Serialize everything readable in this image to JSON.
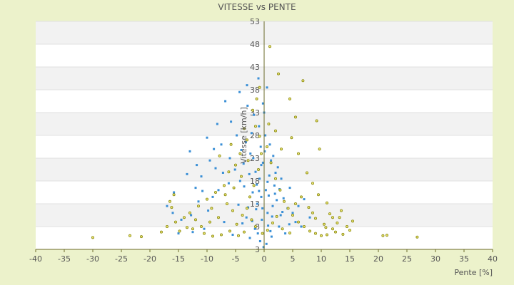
{
  "chart_data": {
    "type": "scatter",
    "title": "VITESSE vs PENTE",
    "xlabel": "Pente [%]",
    "ylabel": "Vitesse [km/h]",
    "xlim": [
      -40,
      40
    ],
    "ylim": [
      3,
      53
    ],
    "x_ticks": [
      -40,
      -35,
      -30,
      -25,
      -20,
      -15,
      -10,
      -5,
      0,
      5,
      10,
      15,
      20,
      25,
      30,
      35,
      40
    ],
    "y_ticks": [
      3,
      8,
      13,
      18,
      23,
      28,
      33,
      38,
      43,
      48,
      53
    ],
    "grid": "horizontal bands",
    "legend": "none",
    "series": [
      {
        "color": "#3a8fd6",
        "values": [
          [
            -0.5,
            14.5
          ],
          [
            0.3,
            16.0
          ],
          [
            -1.2,
            13.0
          ],
          [
            1.5,
            12.5
          ],
          [
            -0.8,
            18.5
          ],
          [
            0.6,
            11.0
          ],
          [
            -2.0,
            15.5
          ],
          [
            2.2,
            13.8
          ],
          [
            -1.5,
            20.0
          ],
          [
            0.9,
            19.2
          ],
          [
            -0.2,
            22.0
          ],
          [
            1.8,
            17.0
          ],
          [
            -2.8,
            12.2
          ],
          [
            2.9,
            10.5
          ],
          [
            -3.5,
            16.8
          ],
          [
            3.4,
            14.2
          ],
          [
            -4.2,
            18.0
          ],
          [
            4.1,
            12.0
          ],
          [
            -0.4,
            9.5
          ],
          [
            0.7,
            8.2
          ],
          [
            -1.1,
            6.5
          ],
          [
            1.3,
            5.8
          ],
          [
            -0.6,
            25.5
          ],
          [
            0.2,
            28.0
          ],
          [
            -2.4,
            24.0
          ],
          [
            1.6,
            23.5
          ],
          [
            -5.1,
            20.5
          ],
          [
            -6.0,
            23.0
          ],
          [
            -7.5,
            26.0
          ],
          [
            -8.2,
            30.5
          ],
          [
            -6.8,
            35.5
          ],
          [
            -4.3,
            37.5
          ],
          [
            -3.0,
            39.0
          ],
          [
            -1.0,
            40.5
          ],
          [
            0.5,
            38.5
          ],
          [
            -9.5,
            22.5
          ],
          [
            -13.0,
            24.5
          ],
          [
            -11.0,
            19.0
          ],
          [
            -15.8,
            15.5
          ],
          [
            -14.5,
            9.5
          ],
          [
            -10.5,
            7.5
          ],
          [
            -12.5,
            6.8
          ],
          [
            -9.0,
            14.5
          ],
          [
            -7.0,
            9.0
          ],
          [
            -5.5,
            6.2
          ],
          [
            -3.8,
            8.7
          ],
          [
            -2.5,
            5.5
          ],
          [
            5.5,
            9.0
          ],
          [
            6.0,
            12.5
          ],
          [
            7.0,
            14.0
          ],
          [
            4.5,
            16.5
          ],
          [
            3.0,
            18.5
          ],
          [
            2.4,
            21.0
          ],
          [
            1.0,
            26.0
          ],
          [
            -0.9,
            30.0
          ],
          [
            -1.8,
            32.5
          ],
          [
            -2.2,
            28.5
          ],
          [
            -3.2,
            26.5
          ],
          [
            -4.8,
            28.0
          ],
          [
            -5.8,
            31.0
          ],
          [
            -8.0,
            16.0
          ],
          [
            -6.5,
            13.0
          ],
          [
            -9.8,
            11.5
          ],
          [
            -11.5,
            13.5
          ],
          [
            -12.0,
            16.5
          ],
          [
            -13.5,
            19.5
          ],
          [
            -0.1,
            3.5
          ],
          [
            0.4,
            4.2
          ],
          [
            -0.7,
            4.8
          ],
          [
            1.1,
            7.0
          ],
          [
            -1.6,
            7.5
          ],
          [
            2.6,
            8.0
          ],
          [
            -3.1,
            10.0
          ],
          [
            3.7,
            6.5
          ],
          [
            -0.3,
            12.0
          ],
          [
            0.8,
            14.8
          ],
          [
            -1.3,
            17.2
          ],
          [
            1.9,
            15.2
          ],
          [
            -2.6,
            19.5
          ],
          [
            2.0,
            19.8
          ],
          [
            -0.5,
            21.5
          ],
          [
            0.1,
            24.5
          ],
          [
            -1.9,
            23.0
          ],
          [
            1.2,
            22.5
          ],
          [
            -4.5,
            12.8
          ],
          [
            4.4,
            8.5
          ],
          [
            -3.6,
            21.8
          ],
          [
            3.2,
            11.2
          ],
          [
            -0.9,
            15.8
          ],
          [
            0.6,
            17.8
          ],
          [
            -1.4,
            11.8
          ],
          [
            1.4,
            10.2
          ],
          [
            -2.1,
            9.2
          ],
          [
            2.7,
            16.2
          ],
          [
            -6.2,
            17.5
          ],
          [
            -7.2,
            19.8
          ],
          [
            -8.8,
            25.0
          ],
          [
            -4.0,
            24.8
          ],
          [
            5.0,
            11.0
          ],
          [
            6.5,
            8.0
          ],
          [
            8.0,
            10.0
          ],
          [
            -0.2,
            35.0
          ],
          [
            0.0,
            33.0
          ],
          [
            -2.9,
            34.5
          ],
          [
            -10.0,
            27.5
          ],
          [
            -11.8,
            21.5
          ],
          [
            -16.0,
            11.0
          ],
          [
            -17.0,
            12.5
          ],
          [
            -15.0,
            6.5
          ],
          [
            -12.8,
            10.5
          ],
          [
            -10.8,
            15.8
          ],
          [
            -8.5,
            20.8
          ]
        ]
      },
      {
        "color": "#8c8c12",
        "values": [
          [
            -30.0,
            5.6
          ],
          [
            -23.5,
            6.0
          ],
          [
            -21.5,
            5.8
          ],
          [
            20.8,
            6.0
          ],
          [
            21.5,
            6.1
          ],
          [
            26.8,
            5.7
          ],
          [
            14.5,
            8.0
          ],
          [
            15.5,
            9.2
          ],
          [
            13.5,
            11.5
          ],
          [
            12.0,
            10.0
          ],
          [
            11.0,
            13.2
          ],
          [
            9.5,
            15.0
          ],
          [
            8.5,
            17.5
          ],
          [
            7.5,
            19.8
          ],
          [
            6.0,
            24.0
          ],
          [
            4.8,
            27.5
          ],
          [
            4.5,
            36.0
          ],
          [
            5.5,
            32.0
          ],
          [
            6.8,
            40.0
          ],
          [
            9.2,
            31.2
          ],
          [
            9.7,
            25.0
          ],
          [
            1.0,
            47.5
          ],
          [
            2.5,
            41.5
          ],
          [
            -0.8,
            38.5
          ],
          [
            -1.3,
            36.0
          ],
          [
            -1.5,
            30.0
          ],
          [
            -2.0,
            33.5
          ],
          [
            -3.0,
            27.0
          ],
          [
            -4.2,
            24.0
          ],
          [
            -5.0,
            21.5
          ],
          [
            -6.2,
            20.0
          ],
          [
            -7.0,
            17.0
          ],
          [
            -8.5,
            15.5
          ],
          [
            -10.0,
            14.0
          ],
          [
            -11.5,
            12.5
          ],
          [
            -13.0,
            11.0
          ],
          [
            -14.0,
            10.0
          ],
          [
            -15.5,
            9.0
          ],
          [
            -17.0,
            8.0
          ],
          [
            -18.0,
            6.8
          ],
          [
            -16.5,
            13.5
          ],
          [
            -15.8,
            15.0
          ],
          [
            -16.2,
            12.2
          ],
          [
            -12.5,
            7.5
          ],
          [
            -10.5,
            6.5
          ],
          [
            -9.0,
            5.9
          ],
          [
            -7.5,
            6.2
          ],
          [
            -6.0,
            7.0
          ],
          [
            -4.8,
            8.5
          ],
          [
            -3.8,
            10.5
          ],
          [
            -3.0,
            12.0
          ],
          [
            -2.5,
            14.5
          ],
          [
            -1.8,
            17.0
          ],
          [
            -1.0,
            20.5
          ],
          [
            -0.5,
            24.0
          ],
          [
            0.5,
            25.5
          ],
          [
            1.2,
            22.0
          ],
          [
            2.0,
            18.5
          ],
          [
            2.8,
            16.0
          ],
          [
            3.5,
            13.5
          ],
          [
            4.2,
            12.0
          ],
          [
            5.0,
            10.5
          ],
          [
            6.0,
            9.0
          ],
          [
            7.0,
            8.0
          ],
          [
            8.0,
            7.0
          ],
          [
            9.0,
            6.5
          ],
          [
            10.0,
            6.0
          ],
          [
            11.0,
            6.2
          ],
          [
            12.5,
            6.8
          ],
          [
            13.8,
            6.3
          ],
          [
            15.0,
            7.2
          ],
          [
            -0.3,
            6.5
          ],
          [
            0.6,
            7.2
          ],
          [
            -1.5,
            8.0
          ],
          [
            1.5,
            8.8
          ],
          [
            -2.2,
            9.5
          ],
          [
            2.2,
            10.2
          ],
          [
            -3.5,
            6.8
          ],
          [
            3.2,
            7.5
          ],
          [
            -4.5,
            6.0
          ],
          [
            4.5,
            6.6
          ],
          [
            -5.5,
            11.5
          ],
          [
            5.5,
            13.0
          ],
          [
            -6.5,
            13.0
          ],
          [
            6.5,
            14.5
          ],
          [
            -8.0,
            10.0
          ],
          [
            8.5,
            11.0
          ],
          [
            -9.5,
            9.0
          ],
          [
            10.5,
            8.5
          ],
          [
            -11.0,
            8.0
          ],
          [
            12.0,
            7.5
          ],
          [
            -7.8,
            23.5
          ],
          [
            -5.8,
            26.0
          ],
          [
            -3.5,
            29.5
          ],
          [
            -0.8,
            27.8
          ],
          [
            0.8,
            30.5
          ],
          [
            2.0,
            29.0
          ],
          [
            3.0,
            25.0
          ],
          [
            -2.8,
            22.5
          ],
          [
            -4.0,
            19.0
          ],
          [
            -5.3,
            16.5
          ],
          [
            -6.8,
            15.0
          ],
          [
            -9.2,
            12.0
          ],
          [
            -12.0,
            9.5
          ],
          [
            -13.5,
            7.8
          ],
          [
            -14.8,
            7.0
          ],
          [
            7.8,
            12.2
          ],
          [
            9.0,
            9.8
          ],
          [
            10.8,
            7.8
          ],
          [
            12.8,
            8.8
          ],
          [
            13.2,
            10.0
          ],
          [
            11.5,
            10.8
          ]
        ]
      }
    ]
  }
}
